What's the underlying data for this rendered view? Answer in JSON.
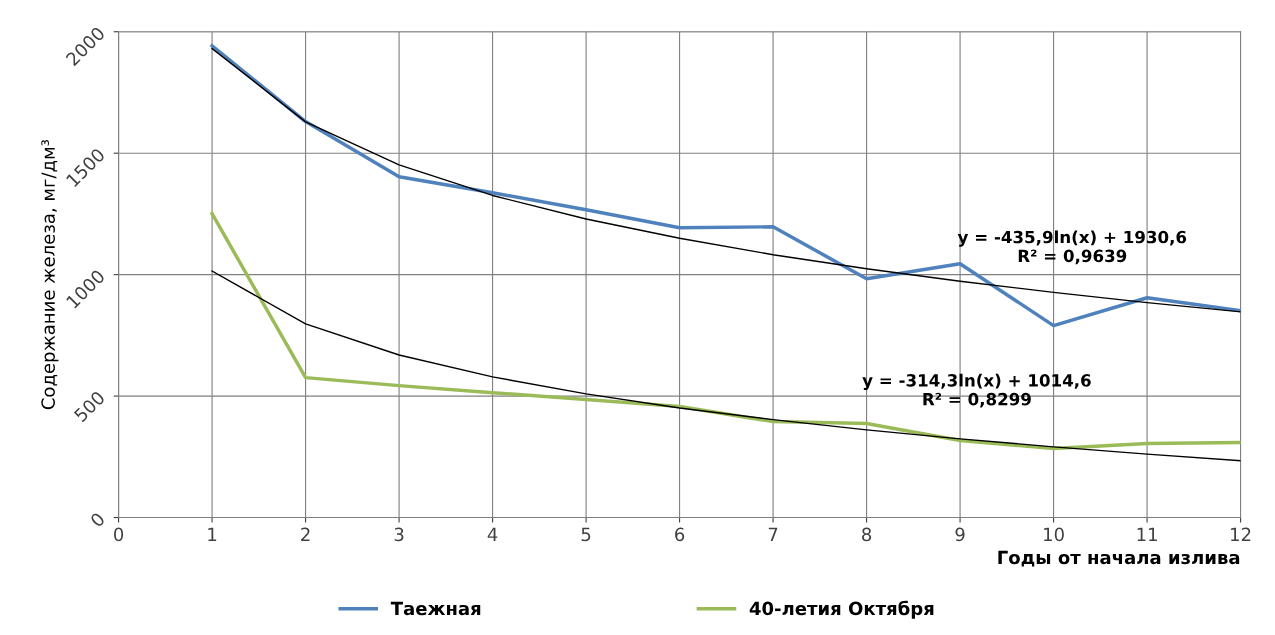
{
  "chart_data": {
    "type": "line",
    "xlabel": "Годы от начала излива",
    "ylabel": "Содержание железа, мг/дм³",
    "x": [
      1,
      2,
      3,
      4,
      5,
      6,
      7,
      8,
      9,
      10,
      11,
      12
    ],
    "series": [
      {
        "name": "Таежная",
        "color": "#4f81bd",
        "values": [
          1942,
          1630,
          1403,
          1337,
          1267,
          1193,
          1197,
          983,
          1045,
          790,
          905,
          852
        ]
      },
      {
        "name": "40-летия Октября",
        "color": "#9bbb59",
        "values": [
          1251,
          576,
          543,
          514,
          486,
          457,
          395,
          387,
          317,
          284,
          305,
          309
        ]
      },
      {
        "type": "line",
        "color": "#000000",
        "values": [
          1931,
          1629,
          1452,
          1326,
          1229,
          1150,
          1082,
          1024,
          973,
          927,
          885,
          847
        ]
      },
      {
        "type": "line",
        "color": "#000000",
        "values": [
          1015,
          797,
          669,
          579,
          509,
          451,
          403,
          361,
          324,
          291,
          261,
          234
        ]
      }
    ],
    "annotations": [
      "y = -435,9ln(x) + 1930,6\nR² = 0,9639",
      "y = -314,3ln(x) + 1014,6\nR² = 0,8299"
    ],
    "xlim": [
      0,
      12
    ],
    "xticks": [
      0,
      1,
      2,
      3,
      4,
      5,
      6,
      7,
      8,
      9,
      10,
      11,
      12
    ],
    "ylim": [
      0,
      2000
    ],
    "yticks": [
      0,
      500,
      1000,
      1500,
      2000
    ],
    "grid": true,
    "legend": "bottom",
    "marker": "none",
    "line_style": "solid"
  }
}
